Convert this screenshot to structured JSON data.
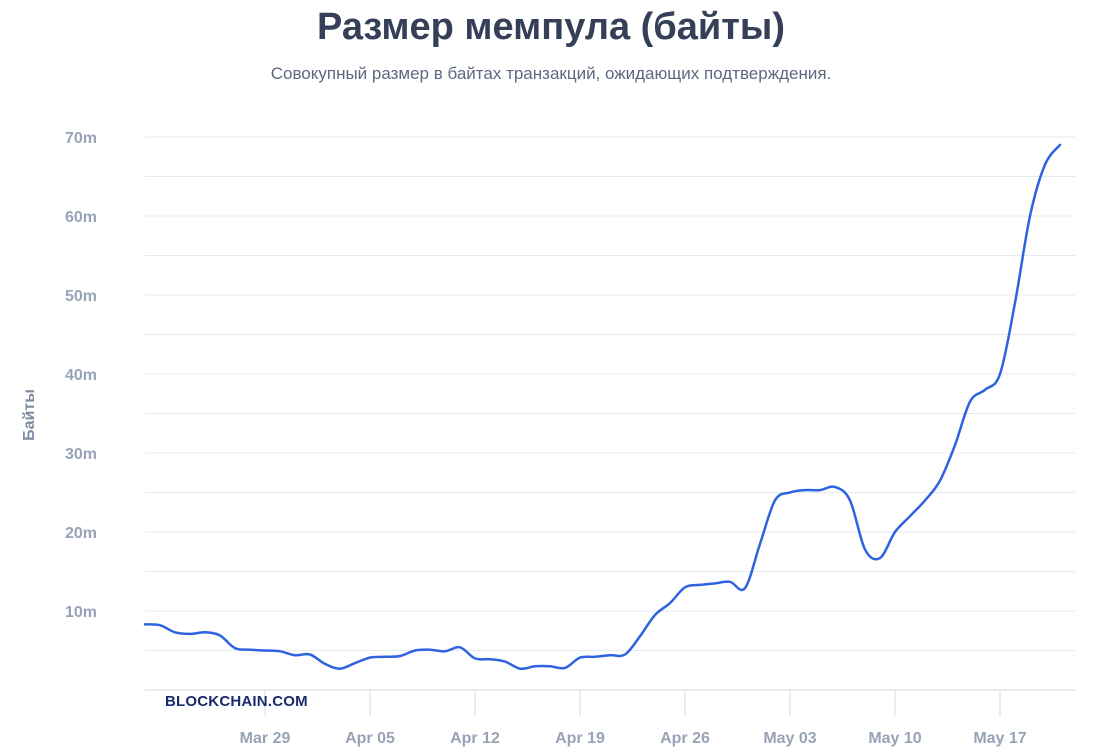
{
  "colors": {
    "line": "#2e63e0",
    "grid": "#e6e9ef",
    "title": "#353f57",
    "ticks": "#98a3b8"
  },
  "chart_data": {
    "type": "line",
    "title": "Размер мемпула (байты)",
    "subtitle": "Совокупный размер в байтах транзакций, ожидающих подтверждения.",
    "ylabel": "Байты",
    "xlabel": "",
    "ylim": [
      0,
      70000000
    ],
    "yticks": [
      10000000,
      20000000,
      30000000,
      40000000,
      50000000,
      60000000,
      70000000
    ],
    "ytick_labels": [
      "10m",
      "20m",
      "30m",
      "40m",
      "50m",
      "60m",
      "70m"
    ],
    "xlim": [
      "2023-03-21",
      "2023-05-22"
    ],
    "xticks": [
      "2023-03-29",
      "2023-04-05",
      "2023-04-12",
      "2023-04-19",
      "2023-04-26",
      "2023-05-03",
      "2023-05-10",
      "2023-05-17"
    ],
    "xtick_labels": [
      "Mar 29",
      "Apr 05",
      "Apr 12",
      "Apr 19",
      "Apr 26",
      "May 03",
      "May 10",
      "May 17"
    ],
    "grid": true,
    "watermark": "BLOCKCHAIN.COM",
    "series": [
      {
        "values": [
          [
            "2023-03-21",
            8300000
          ],
          [
            "2023-03-22",
            8200000
          ],
          [
            "2023-03-23",
            7300000
          ],
          [
            "2023-03-24",
            7100000
          ],
          [
            "2023-03-25",
            7300000
          ],
          [
            "2023-03-26",
            6900000
          ],
          [
            "2023-03-27",
            5300000
          ],
          [
            "2023-03-28",
            5100000
          ],
          [
            "2023-03-29",
            5000000
          ],
          [
            "2023-03-30",
            4900000
          ],
          [
            "2023-03-31",
            4400000
          ],
          [
            "2023-04-01",
            4500000
          ],
          [
            "2023-04-02",
            3300000
          ],
          [
            "2023-04-03",
            2700000
          ],
          [
            "2023-04-04",
            3400000
          ],
          [
            "2023-04-05",
            4100000
          ],
          [
            "2023-04-06",
            4200000
          ],
          [
            "2023-04-07",
            4300000
          ],
          [
            "2023-04-08",
            5000000
          ],
          [
            "2023-04-09",
            5100000
          ],
          [
            "2023-04-10",
            4900000
          ],
          [
            "2023-04-11",
            5400000
          ],
          [
            "2023-04-12",
            4000000
          ],
          [
            "2023-04-13",
            3900000
          ],
          [
            "2023-04-14",
            3600000
          ],
          [
            "2023-04-15",
            2700000
          ],
          [
            "2023-04-16",
            3000000
          ],
          [
            "2023-04-17",
            3000000
          ],
          [
            "2023-04-18",
            2800000
          ],
          [
            "2023-04-19",
            4100000
          ],
          [
            "2023-04-20",
            4200000
          ],
          [
            "2023-04-21",
            4400000
          ],
          [
            "2023-04-22",
            4500000
          ],
          [
            "2023-04-23",
            6800000
          ],
          [
            "2023-04-24",
            9500000
          ],
          [
            "2023-04-25",
            11000000
          ],
          [
            "2023-04-26",
            13000000
          ],
          [
            "2023-04-27",
            13300000
          ],
          [
            "2023-04-28",
            13500000
          ],
          [
            "2023-04-29",
            13700000
          ],
          [
            "2023-04-30",
            12900000
          ],
          [
            "2023-05-01",
            18500000
          ],
          [
            "2023-05-02",
            24000000
          ],
          [
            "2023-05-03",
            25000000
          ],
          [
            "2023-05-04",
            25300000
          ],
          [
            "2023-05-05",
            25300000
          ],
          [
            "2023-05-06",
            25700000
          ],
          [
            "2023-05-07",
            24000000
          ],
          [
            "2023-05-08",
            17800000
          ],
          [
            "2023-05-09",
            16700000
          ],
          [
            "2023-05-10",
            20000000
          ],
          [
            "2023-05-11",
            22000000
          ],
          [
            "2023-05-12",
            24000000
          ],
          [
            "2023-05-13",
            26500000
          ],
          [
            "2023-05-14",
            31000000
          ],
          [
            "2023-05-15",
            36500000
          ],
          [
            "2023-05-16",
            38000000
          ],
          [
            "2023-05-17",
            40000000
          ],
          [
            "2023-05-18",
            49000000
          ],
          [
            "2023-05-19",
            60000000
          ],
          [
            "2023-05-20",
            66500000
          ],
          [
            "2023-05-21",
            69000000
          ]
        ]
      }
    ]
  }
}
